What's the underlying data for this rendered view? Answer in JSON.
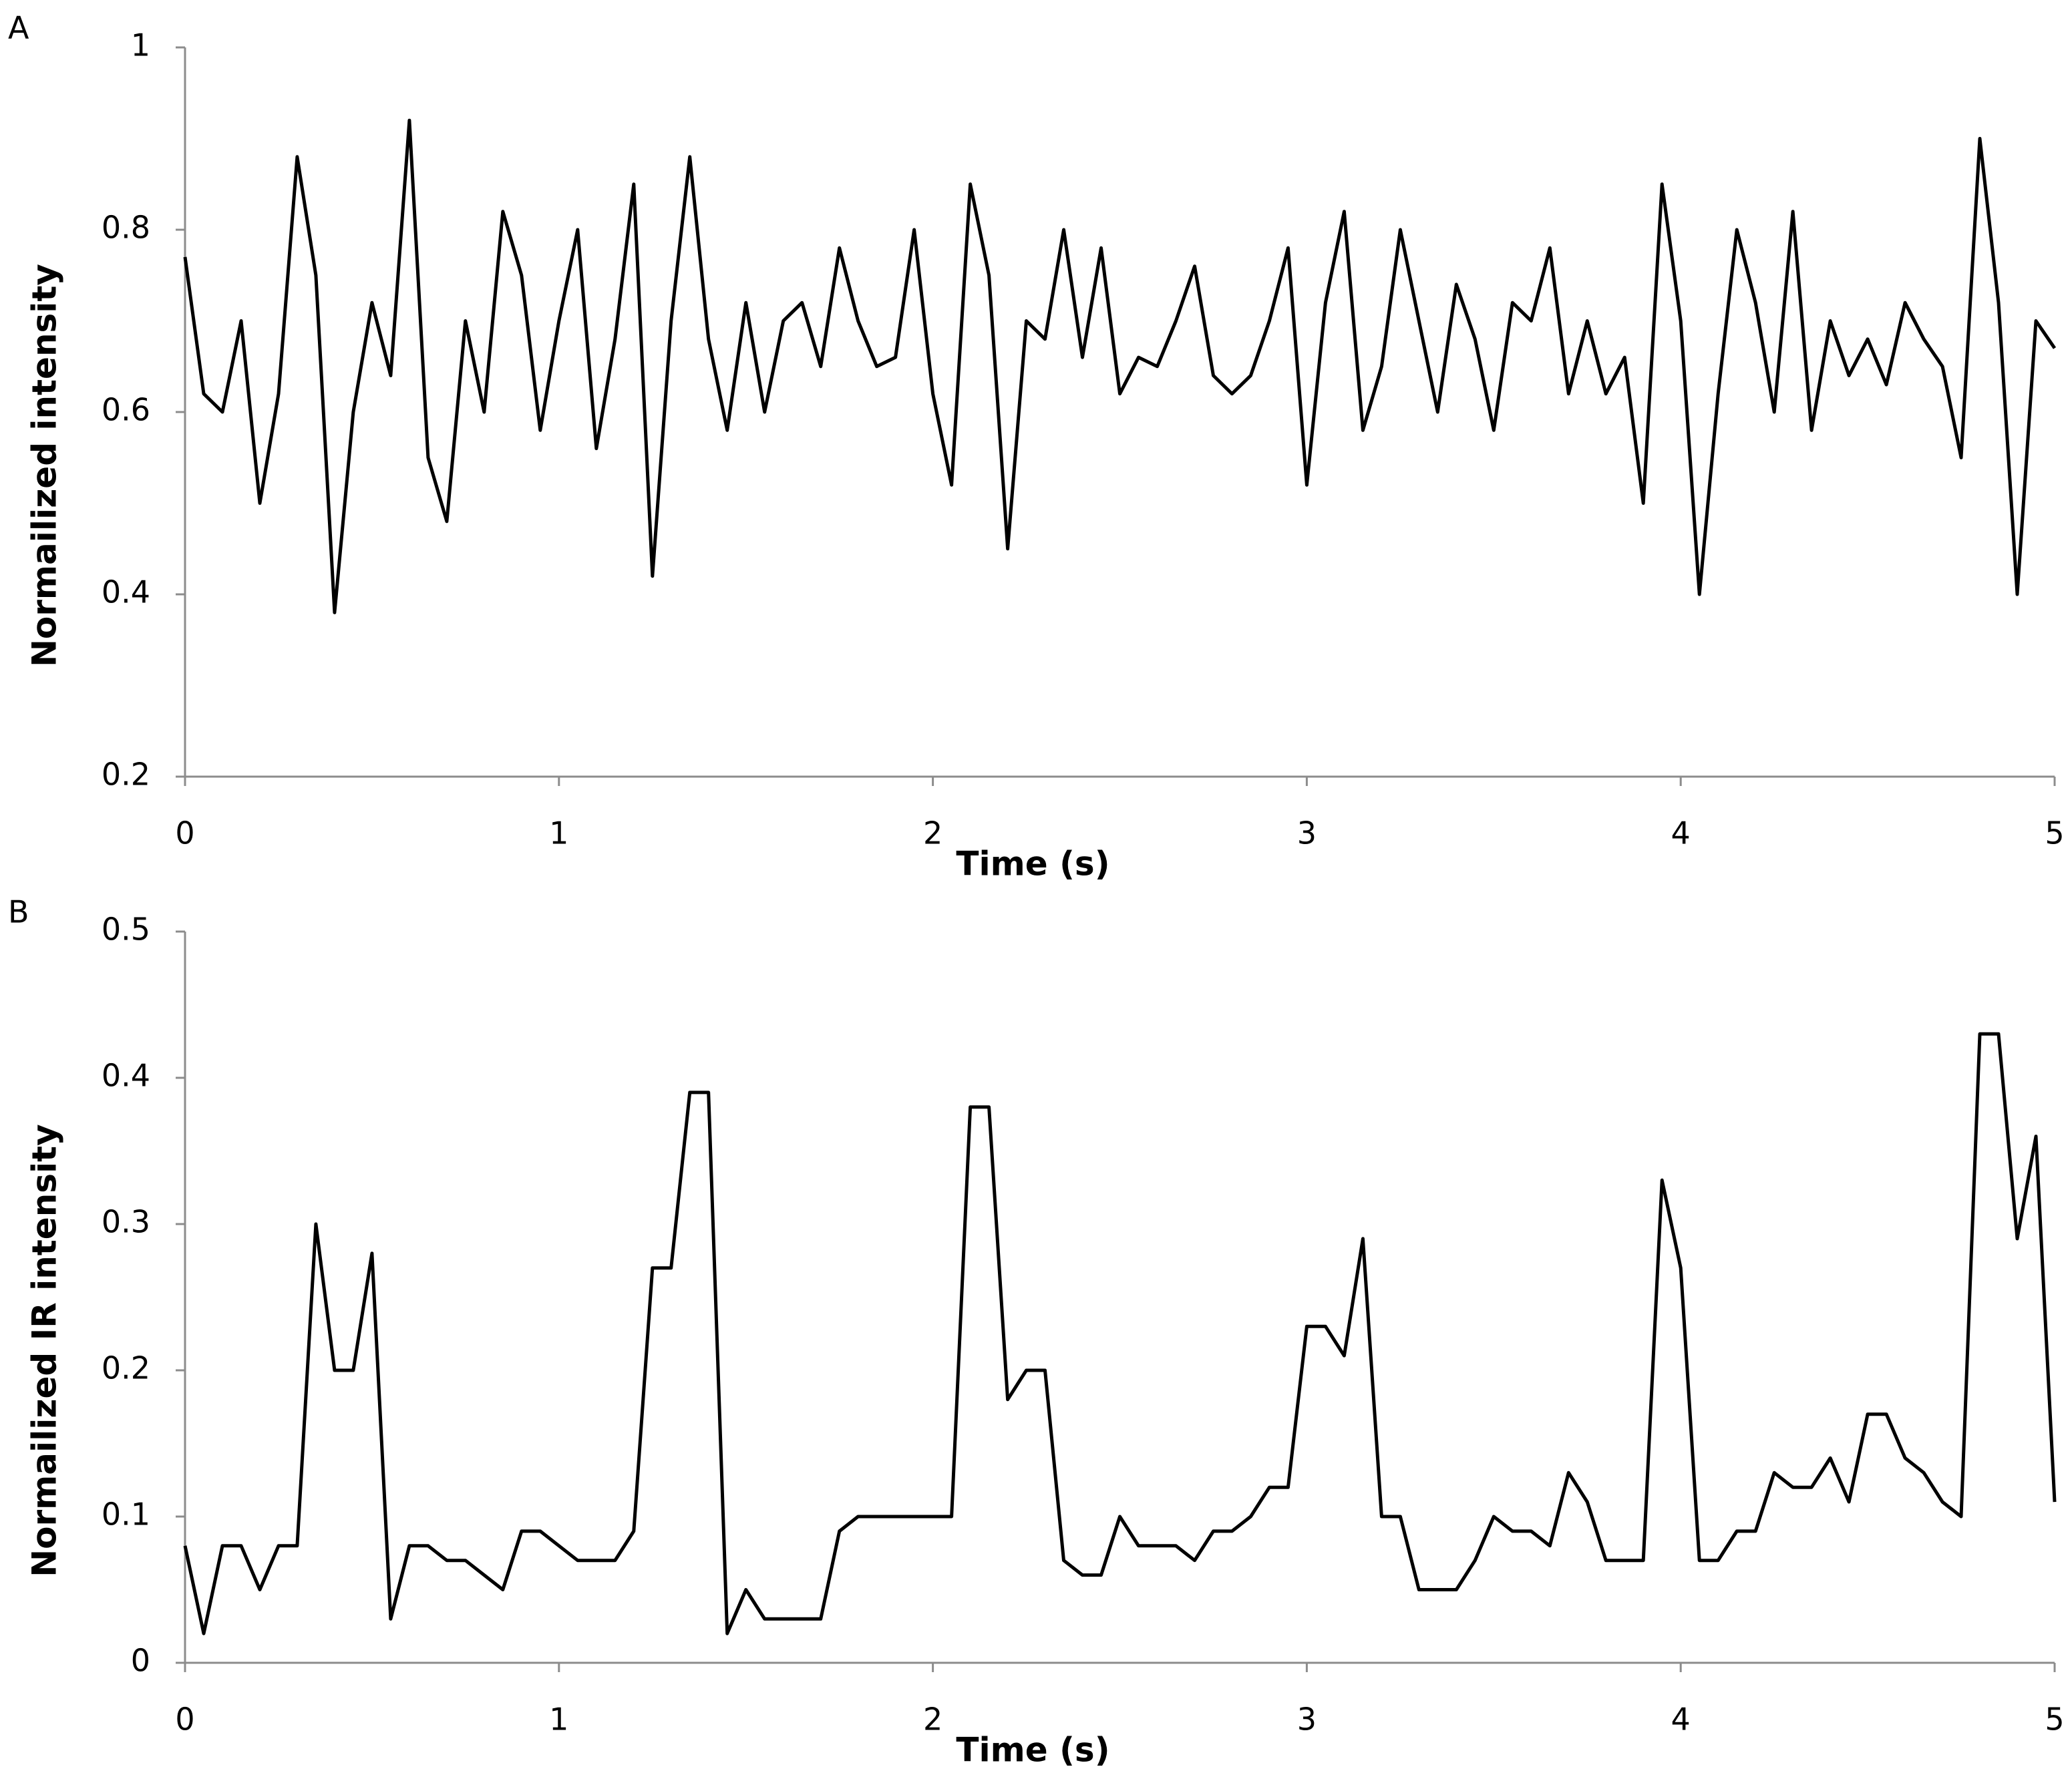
{
  "chart_data": [
    {
      "type": "line",
      "panel_label": "A",
      "xlabel": "Time (s)",
      "ylabel": "Normailized intensity",
      "xlim": [
        0,
        5
      ],
      "xticks": [
        0,
        1,
        2,
        3,
        4,
        5
      ],
      "ylim": [
        0.2,
        1
      ],
      "yticks": [
        0.2,
        0.4,
        0.6,
        0.8,
        1
      ],
      "x": [
        0,
        0.05,
        0.1,
        0.15,
        0.2,
        0.25,
        0.3,
        0.35,
        0.4,
        0.45,
        0.5,
        0.55,
        0.6,
        0.65,
        0.7,
        0.75,
        0.8,
        0.85,
        0.9,
        0.95,
        1,
        1.05,
        1.1,
        1.15,
        1.2,
        1.25,
        1.3,
        1.35,
        1.4,
        1.45,
        1.5,
        1.55,
        1.6,
        1.65,
        1.7,
        1.75,
        1.8,
        1.85,
        1.9,
        1.95,
        2,
        2.05,
        2.1,
        2.15,
        2.2,
        2.25,
        2.3,
        2.35,
        2.4,
        2.45,
        2.5,
        2.55,
        2.6,
        2.65,
        2.7,
        2.75,
        2.8,
        2.85,
        2.9,
        2.95,
        3,
        3.05,
        3.1,
        3.15,
        3.2,
        3.25,
        3.3,
        3.35,
        3.4,
        3.45,
        3.5,
        3.55,
        3.6,
        3.65,
        3.7,
        3.75,
        3.8,
        3.85,
        3.9,
        3.95,
        4,
        4.05,
        4.1,
        4.15,
        4.2,
        4.25,
        4.3,
        4.35,
        4.4,
        4.45,
        4.5,
        4.55,
        4.6,
        4.65,
        4.7,
        4.75,
        4.8,
        4.85,
        4.9,
        4.95,
        5
      ],
      "series": [
        {
          "color": "#000000",
          "values": [
            0.77,
            0.62,
            0.6,
            0.7,
            0.5,
            0.62,
            0.88,
            0.75,
            0.38,
            0.6,
            0.72,
            0.64,
            0.92,
            0.55,
            0.48,
            0.7,
            0.6,
            0.82,
            0.75,
            0.58,
            0.7,
            0.8,
            0.56,
            0.68,
            0.85,
            0.42,
            0.7,
            0.88,
            0.68,
            0.58,
            0.72,
            0.6,
            0.7,
            0.72,
            0.65,
            0.78,
            0.7,
            0.65,
            0.66,
            0.8,
            0.62,
            0.52,
            0.85,
            0.75,
            0.45,
            0.7,
            0.68,
            0.8,
            0.66,
            0.78,
            0.62,
            0.66,
            0.65,
            0.7,
            0.76,
            0.64,
            0.62,
            0.64,
            0.7,
            0.78,
            0.52,
            0.72,
            0.82,
            0.58,
            0.65,
            0.8,
            0.7,
            0.6,
            0.74,
            0.68,
            0.58,
            0.72,
            0.7,
            0.78,
            0.62,
            0.7,
            0.62,
            0.66,
            0.5,
            0.85,
            0.7,
            0.4,
            0.62,
            0.8,
            0.72,
            0.6,
            0.82,
            0.58,
            0.7,
            0.64,
            0.68,
            0.63,
            0.72,
            0.68,
            0.65,
            0.55,
            0.9,
            0.72,
            0.4,
            0.7,
            0.67
          ]
        }
      ]
    },
    {
      "type": "line",
      "panel_label": "B",
      "xlabel": "Time (s)",
      "ylabel": "Normailized IR intensity",
      "xlim": [
        0,
        5
      ],
      "xticks": [
        0,
        1,
        2,
        3,
        4,
        5
      ],
      "ylim": [
        0,
        0.5
      ],
      "yticks": [
        0,
        0.1,
        0.2,
        0.3,
        0.4,
        0.5
      ],
      "x": [
        0,
        0.05,
        0.1,
        0.15,
        0.2,
        0.25,
        0.3,
        0.35,
        0.4,
        0.45,
        0.5,
        0.55,
        0.6,
        0.65,
        0.7,
        0.75,
        0.8,
        0.85,
        0.9,
        0.95,
        1,
        1.05,
        1.1,
        1.15,
        1.2,
        1.25,
        1.3,
        1.35,
        1.4,
        1.45,
        1.5,
        1.55,
        1.6,
        1.65,
        1.7,
        1.75,
        1.8,
        1.85,
        1.9,
        1.95,
        2,
        2.05,
        2.1,
        2.15,
        2.2,
        2.25,
        2.3,
        2.35,
        2.4,
        2.45,
        2.5,
        2.55,
        2.6,
        2.65,
        2.7,
        2.75,
        2.8,
        2.85,
        2.9,
        2.95,
        3,
        3.05,
        3.1,
        3.15,
        3.2,
        3.25,
        3.3,
        3.35,
        3.4,
        3.45,
        3.5,
        3.55,
        3.6,
        3.65,
        3.7,
        3.75,
        3.8,
        3.85,
        3.9,
        3.95,
        4,
        4.05,
        4.1,
        4.15,
        4.2,
        4.25,
        4.3,
        4.35,
        4.4,
        4.45,
        4.5,
        4.55,
        4.6,
        4.65,
        4.7,
        4.75,
        4.8,
        4.85,
        4.9,
        4.95,
        5
      ],
      "series": [
        {
          "color": "#000000",
          "values": [
            0.08,
            0.02,
            0.08,
            0.08,
            0.05,
            0.08,
            0.08,
            0.3,
            0.2,
            0.2,
            0.28,
            0.03,
            0.08,
            0.08,
            0.07,
            0.07,
            0.06,
            0.05,
            0.09,
            0.09,
            0.08,
            0.07,
            0.07,
            0.07,
            0.09,
            0.27,
            0.27,
            0.39,
            0.39,
            0.02,
            0.05,
            0.03,
            0.03,
            0.03,
            0.03,
            0.09,
            0.1,
            0.1,
            0.1,
            0.1,
            0.1,
            0.1,
            0.38,
            0.38,
            0.18,
            0.2,
            0.2,
            0.07,
            0.06,
            0.06,
            0.1,
            0.08,
            0.08,
            0.08,
            0.07,
            0.09,
            0.09,
            0.1,
            0.12,
            0.12,
            0.23,
            0.23,
            0.21,
            0.29,
            0.1,
            0.1,
            0.05,
            0.05,
            0.05,
            0.07,
            0.1,
            0.09,
            0.09,
            0.08,
            0.13,
            0.11,
            0.07,
            0.07,
            0.07,
            0.33,
            0.27,
            0.07,
            0.07,
            0.09,
            0.09,
            0.13,
            0.12,
            0.12,
            0.14,
            0.11,
            0.17,
            0.17,
            0.14,
            0.13,
            0.11,
            0.1,
            0.43,
            0.43,
            0.29,
            0.36,
            0.11
          ]
        }
      ]
    }
  ]
}
